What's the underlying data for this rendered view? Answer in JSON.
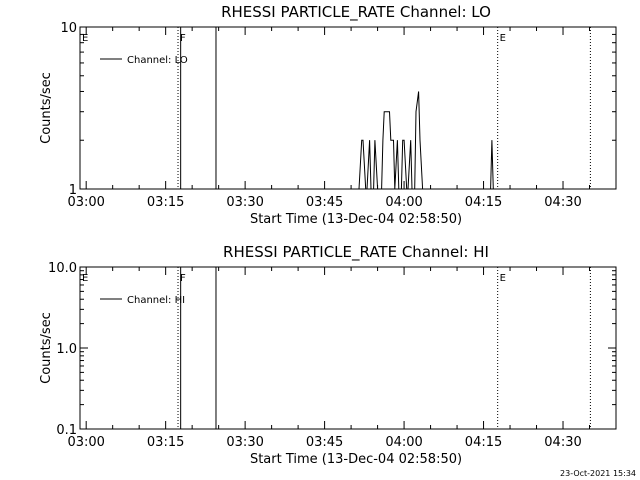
{
  "stamp": "23-Oct-2021 15:34",
  "chart_data": [
    {
      "type": "line",
      "title": "RHESSI PARTICLE_RATE Channel: LO",
      "xlabel": "Start Time (13-Dec-04 02:58:50)",
      "ylabel": "Counts/sec",
      "yscale": "log",
      "ylim": [
        1,
        10
      ],
      "xlim": [
        "02:58:50",
        "04:40:00"
      ],
      "xticks": [
        "03:00",
        "03:15",
        "03:30",
        "03:45",
        "04:00",
        "04:15",
        "04:30"
      ],
      "yticks": [
        "1",
        "10"
      ],
      "legend": {
        "placement": "top-left",
        "label": "Channel: LO"
      },
      "markers": [
        {
          "label": "E",
          "time": "02:58:50",
          "style": "dotted"
        },
        {
          "label": "F",
          "time": "03:17:20",
          "style": "dotted"
        },
        {
          "label": "",
          "time": "03:17:50",
          "style": "solid"
        },
        {
          "label": "",
          "time": "03:24:30",
          "style": "solid"
        },
        {
          "label": "E",
          "time": "04:17:40",
          "style": "dotted"
        },
        {
          "label": "",
          "time": "04:35:10",
          "style": "dotted"
        }
      ],
      "series": [
        {
          "x": [
            "03:51:30",
            "03:52:00",
            "03:52:15",
            "03:52:45",
            "03:53:00",
            "03:53:30",
            "03:53:45",
            "03:54:15",
            "03:54:30",
            "03:55:00",
            "03:55:15",
            "03:55:45",
            "03:56:00",
            "03:56:15",
            "03:57:15",
            "03:57:30",
            "03:58:00",
            "03:58:15",
            "03:58:45",
            "03:59:00",
            "03:59:30",
            "03:59:45",
            "04:00:00",
            "04:00:30",
            "04:00:45",
            "04:01:15",
            "04:01:30",
            "04:02:00",
            "04:02:15",
            "04:02:45",
            "04:03:00",
            "04:03:30",
            "04:04:00",
            "04:04:15",
            "04:16:20",
            "04:16:35",
            "04:16:50"
          ],
          "y": [
            1,
            2,
            2,
            1,
            1,
            2,
            1,
            1,
            2,
            1,
            1,
            1,
            2,
            3,
            3,
            2,
            2,
            1,
            2,
            1,
            1,
            2,
            2,
            1,
            1,
            2,
            1,
            1,
            3,
            4,
            2,
            1,
            1,
            1,
            1,
            2,
            1
          ]
        }
      ]
    },
    {
      "type": "line",
      "title": "RHESSI PARTICLE_RATE Channel: HI",
      "xlabel": "Start Time (13-Dec-04 02:58:50)",
      "ylabel": "Counts/sec",
      "yscale": "log",
      "ylim": [
        0.1,
        10
      ],
      "xlim": [
        "02:58:50",
        "04:40:00"
      ],
      "xticks": [
        "03:00",
        "03:15",
        "03:30",
        "03:45",
        "04:00",
        "04:15",
        "04:30"
      ],
      "yticks": [
        "0.1",
        "1.0",
        "10.0"
      ],
      "legend": {
        "placement": "top-left",
        "label": "Channel: HI"
      },
      "markers": [
        {
          "label": "E",
          "time": "02:58:50",
          "style": "dotted"
        },
        {
          "label": "F",
          "time": "03:17:20",
          "style": "dotted"
        },
        {
          "label": "",
          "time": "03:17:50",
          "style": "solid"
        },
        {
          "label": "",
          "time": "03:24:30",
          "style": "solid"
        },
        {
          "label": "E",
          "time": "04:17:40",
          "style": "dotted"
        },
        {
          "label": "",
          "time": "04:35:10",
          "style": "dotted"
        }
      ],
      "series": []
    }
  ]
}
